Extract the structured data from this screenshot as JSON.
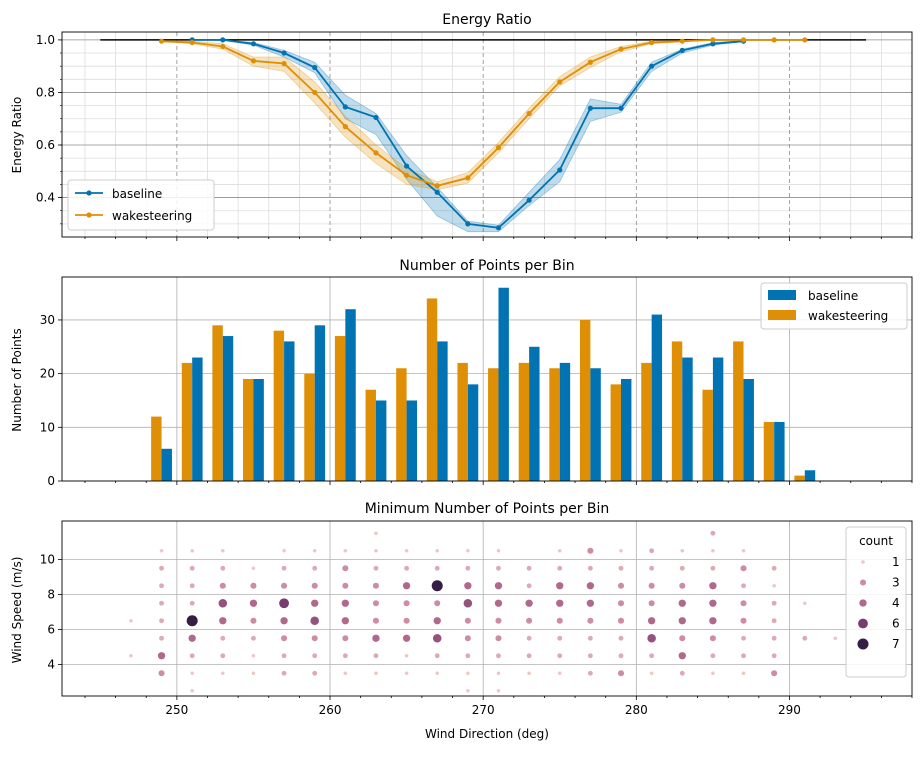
{
  "x_axis": {
    "label": "Wind Direction (deg)",
    "range": [
      242.5,
      298
    ],
    "ticks": [
      250,
      260,
      270,
      280,
      290
    ],
    "tick_labels": [
      "250",
      "260",
      "270",
      "280",
      "290"
    ]
  },
  "colors": {
    "baseline": "#0173b2",
    "wakesteering": "#de8f05",
    "reference_line": "#000000"
  },
  "chart_data": [
    {
      "id": "energy_ratio",
      "type": "line",
      "title": "Energy Ratio",
      "ylabel": "Energy Ratio",
      "ylim": [
        0.25,
        1.03
      ],
      "yticks": [
        0.4,
        0.6,
        0.8,
        1.0
      ],
      "ytick_labels": [
        "0.4",
        "0.6",
        "0.8",
        "1.0"
      ],
      "reference_line": {
        "x": [
          245,
          295
        ],
        "y": 1.0
      },
      "legend": {
        "position": "lower-left",
        "entries": [
          "baseline",
          "wakesteering"
        ]
      },
      "series": [
        {
          "name": "baseline",
          "x": [
            251,
            253,
            255,
            257,
            259,
            261,
            263,
            265,
            267,
            269,
            271,
            273,
            275,
            277,
            279,
            281,
            283,
            285,
            287
          ],
          "y": [
            1.0,
            1.0,
            0.985,
            0.95,
            0.895,
            0.745,
            0.705,
            0.52,
            0.42,
            0.3,
            0.285,
            0.39,
            0.505,
            0.74,
            0.74,
            0.9,
            0.96,
            0.985,
            0.995
          ],
          "lower": [
            0.998,
            0.998,
            0.98,
            0.935,
            0.875,
            0.7,
            0.64,
            0.47,
            0.33,
            0.27,
            0.27,
            0.37,
            0.46,
            0.69,
            0.725,
            0.88,
            0.95,
            0.98,
            0.993
          ],
          "upper": [
            1.0,
            1.0,
            0.99,
            0.96,
            0.915,
            0.79,
            0.72,
            0.56,
            0.44,
            0.31,
            0.295,
            0.42,
            0.545,
            0.775,
            0.755,
            0.915,
            0.965,
            0.99,
            0.998
          ]
        },
        {
          "name": "wakesteering",
          "x": [
            249,
            251,
            253,
            255,
            257,
            259,
            261,
            263,
            265,
            267,
            269,
            271,
            273,
            275,
            277,
            279,
            281,
            283,
            285,
            287,
            289,
            291
          ],
          "y": [
            0.995,
            0.99,
            0.975,
            0.92,
            0.91,
            0.8,
            0.67,
            0.57,
            0.485,
            0.445,
            0.475,
            0.59,
            0.72,
            0.84,
            0.915,
            0.965,
            0.99,
            0.995,
            1.0,
            1.0,
            1.0,
            1.0
          ],
          "lower": [
            0.993,
            0.985,
            0.965,
            0.9,
            0.88,
            0.76,
            0.63,
            0.53,
            0.45,
            0.43,
            0.455,
            0.57,
            0.7,
            0.825,
            0.895,
            0.955,
            0.985,
            0.993,
            0.998,
            0.998,
            0.998,
            0.998
          ],
          "upper": [
            0.998,
            0.995,
            0.985,
            0.935,
            0.935,
            0.84,
            0.71,
            0.6,
            0.51,
            0.46,
            0.495,
            0.61,
            0.74,
            0.86,
            0.935,
            0.975,
            0.995,
            0.998,
            1.0,
            1.0,
            1.0,
            1.0
          ]
        }
      ]
    },
    {
      "id": "points_per_bin",
      "type": "bar",
      "title": "Number of Points per Bin",
      "ylabel": "Number of Points",
      "ylim": [
        0,
        38
      ],
      "yticks": [
        0,
        10,
        20,
        30
      ],
      "ytick_labels": [
        "0",
        "10",
        "20",
        "30"
      ],
      "legend": {
        "position": "top-right",
        "entries": [
          "baseline",
          "wakesteering"
        ]
      },
      "categories": [
        249,
        251,
        253,
        255,
        257,
        259,
        261,
        263,
        265,
        267,
        269,
        271,
        273,
        275,
        277,
        279,
        281,
        283,
        285,
        287,
        289,
        291
      ],
      "series": [
        {
          "name": "baseline",
          "values": [
            6,
            23,
            27,
            19,
            26,
            29,
            32,
            15,
            15,
            26,
            18,
            36,
            25,
            22,
            21,
            19,
            31,
            23,
            23,
            19,
            11,
            2
          ]
        },
        {
          "name": "wakesteering",
          "values": [
            12,
            22,
            29,
            19,
            28,
            20,
            27,
            17,
            21,
            34,
            22,
            21,
            22,
            21,
            30,
            18,
            22,
            26,
            17,
            26,
            11,
            1
          ]
        }
      ]
    },
    {
      "id": "min_points_per_bin",
      "type": "scatter",
      "title": "Minimum Number of Points per Bin",
      "ylabel": "Wind Speed (m/s)",
      "xlabel": "Wind Direction (deg)",
      "ylim": [
        2.2,
        12.2
      ],
      "yticks": [
        4,
        6,
        8,
        10
      ],
      "ytick_labels": [
        "4",
        "6",
        "8",
        "10"
      ],
      "legend": {
        "title": "count",
        "position": "top-right",
        "entries": [
          {
            "label": "1",
            "value": 1
          },
          {
            "label": "3",
            "value": 3
          },
          {
            "label": "4",
            "value": 4
          },
          {
            "label": "6",
            "value": 6
          },
          {
            "label": "7",
            "value": 7
          }
        ]
      },
      "points": [
        [
          247,
          4.5,
          1
        ],
        [
          247,
          6.5,
          1
        ],
        [
          249,
          3.5,
          3
        ],
        [
          249,
          4.5,
          4
        ],
        [
          249,
          5.5,
          2
        ],
        [
          249,
          6.5,
          2
        ],
        [
          249,
          7.5,
          2
        ],
        [
          249,
          8.5,
          2
        ],
        [
          249,
          9.5,
          2
        ],
        [
          249,
          10.5,
          1
        ],
        [
          251,
          2.5,
          1
        ],
        [
          251,
          3.5,
          1
        ],
        [
          251,
          4.5,
          2
        ],
        [
          251,
          5.5,
          4
        ],
        [
          251,
          6.5,
          7
        ],
        [
          251,
          7.5,
          2
        ],
        [
          251,
          8.5,
          2
        ],
        [
          251,
          9.5,
          2
        ],
        [
          251,
          10.5,
          1
        ],
        [
          253,
          3.5,
          1
        ],
        [
          253,
          4.5,
          2
        ],
        [
          253,
          5.5,
          2
        ],
        [
          253,
          6.5,
          4
        ],
        [
          253,
          7.5,
          5
        ],
        [
          253,
          8.5,
          3
        ],
        [
          253,
          9.5,
          2
        ],
        [
          253,
          10.5,
          1
        ],
        [
          255,
          3.5,
          1
        ],
        [
          255,
          4.5,
          1
        ],
        [
          255,
          5.5,
          2
        ],
        [
          255,
          6.5,
          3
        ],
        [
          255,
          7.5,
          4
        ],
        [
          255,
          8.5,
          3
        ],
        [
          255,
          9.5,
          1
        ],
        [
          257,
          3.5,
          2
        ],
        [
          257,
          4.5,
          2
        ],
        [
          257,
          5.5,
          3
        ],
        [
          257,
          6.5,
          4
        ],
        [
          257,
          7.5,
          6
        ],
        [
          257,
          8.5,
          3
        ],
        [
          257,
          9.5,
          2
        ],
        [
          257,
          10.5,
          1
        ],
        [
          259,
          3.5,
          2
        ],
        [
          259,
          4.5,
          2
        ],
        [
          259,
          5.5,
          3
        ],
        [
          259,
          6.5,
          5
        ],
        [
          259,
          7.5,
          4
        ],
        [
          259,
          8.5,
          3
        ],
        [
          259,
          9.5,
          2
        ],
        [
          259,
          10.5,
          1
        ],
        [
          261,
          3.5,
          1
        ],
        [
          261,
          4.5,
          2
        ],
        [
          261,
          5.5,
          3
        ],
        [
          261,
          6.5,
          4
        ],
        [
          261,
          7.5,
          4
        ],
        [
          261,
          8.5,
          3
        ],
        [
          261,
          9.5,
          3
        ],
        [
          261,
          10.5,
          1
        ],
        [
          263,
          3.5,
          1
        ],
        [
          263,
          4.5,
          2
        ],
        [
          263,
          5.5,
          4
        ],
        [
          263,
          6.5,
          3
        ],
        [
          263,
          7.5,
          3
        ],
        [
          263,
          8.5,
          3
        ],
        [
          263,
          9.5,
          2
        ],
        [
          263,
          10.5,
          1
        ],
        [
          263,
          11.5,
          1
        ],
        [
          265,
          3.5,
          1
        ],
        [
          265,
          4.5,
          1
        ],
        [
          265,
          5.5,
          4
        ],
        [
          265,
          6.5,
          3
        ],
        [
          265,
          7.5,
          3
        ],
        [
          265,
          8.5,
          4
        ],
        [
          265,
          9.5,
          2
        ],
        [
          265,
          10.5,
          1
        ],
        [
          267,
          3.5,
          1
        ],
        [
          267,
          4.5,
          2
        ],
        [
          267,
          5.5,
          5
        ],
        [
          267,
          6.5,
          4
        ],
        [
          267,
          7.5,
          3
        ],
        [
          267,
          8.5,
          7
        ],
        [
          267,
          9.5,
          2
        ],
        [
          267,
          10.5,
          1
        ],
        [
          269,
          2.5,
          1
        ],
        [
          269,
          3.5,
          1
        ],
        [
          269,
          4.5,
          2
        ],
        [
          269,
          5.5,
          3
        ],
        [
          269,
          6.5,
          3
        ],
        [
          269,
          7.5,
          5
        ],
        [
          269,
          8.5,
          4
        ],
        [
          269,
          9.5,
          2
        ],
        [
          269,
          10.5,
          1
        ],
        [
          271,
          2.5,
          1
        ],
        [
          271,
          3.5,
          1
        ],
        [
          271,
          4.5,
          2
        ],
        [
          271,
          5.5,
          3
        ],
        [
          271,
          6.5,
          3
        ],
        [
          271,
          7.5,
          4
        ],
        [
          271,
          8.5,
          4
        ],
        [
          271,
          9.5,
          2
        ],
        [
          271,
          10.5,
          1
        ],
        [
          273,
          3.5,
          1
        ],
        [
          273,
          4.5,
          2
        ],
        [
          273,
          5.5,
          2
        ],
        [
          273,
          6.5,
          3
        ],
        [
          273,
          7.5,
          4
        ],
        [
          273,
          8.5,
          2
        ],
        [
          273,
          9.5,
          2
        ],
        [
          275,
          3.5,
          1
        ],
        [
          275,
          4.5,
          2
        ],
        [
          275,
          5.5,
          2
        ],
        [
          275,
          6.5,
          3
        ],
        [
          275,
          7.5,
          4
        ],
        [
          275,
          8.5,
          4
        ],
        [
          275,
          9.5,
          2
        ],
        [
          275,
          10.5,
          1
        ],
        [
          277,
          3.5,
          2
        ],
        [
          277,
          4.5,
          2
        ],
        [
          277,
          5.5,
          2
        ],
        [
          277,
          6.5,
          3
        ],
        [
          277,
          7.5,
          4
        ],
        [
          277,
          8.5,
          4
        ],
        [
          277,
          9.5,
          2
        ],
        [
          277,
          10.5,
          3
        ],
        [
          279,
          3.5,
          3
        ],
        [
          279,
          4.5,
          2
        ],
        [
          279,
          5.5,
          2
        ],
        [
          279,
          6.5,
          3
        ],
        [
          279,
          7.5,
          3
        ],
        [
          279,
          8.5,
          3
        ],
        [
          279,
          9.5,
          2
        ],
        [
          279,
          10.5,
          1
        ],
        [
          281,
          3.5,
          1
        ],
        [
          281,
          4.5,
          2
        ],
        [
          281,
          5.5,
          5
        ],
        [
          281,
          6.5,
          4
        ],
        [
          281,
          7.5,
          3
        ],
        [
          281,
          8.5,
          3
        ],
        [
          281,
          9.5,
          2
        ],
        [
          281,
          10.5,
          2
        ],
        [
          283,
          3.5,
          2
        ],
        [
          283,
          4.5,
          4
        ],
        [
          283,
          5.5,
          3
        ],
        [
          283,
          6.5,
          4
        ],
        [
          283,
          7.5,
          4
        ],
        [
          283,
          8.5,
          3
        ],
        [
          283,
          9.5,
          2
        ],
        [
          283,
          10.5,
          1
        ],
        [
          285,
          3.5,
          1
        ],
        [
          285,
          4.5,
          2
        ],
        [
          285,
          5.5,
          3
        ],
        [
          285,
          6.5,
          4
        ],
        [
          285,
          7.5,
          4
        ],
        [
          285,
          8.5,
          4
        ],
        [
          285,
          9.5,
          2
        ],
        [
          285,
          10.5,
          1
        ],
        [
          285,
          11.5,
          2
        ],
        [
          287,
          3.5,
          1
        ],
        [
          287,
          4.5,
          2
        ],
        [
          287,
          5.5,
          2
        ],
        [
          287,
          6.5,
          3
        ],
        [
          287,
          7.5,
          3
        ],
        [
          287,
          8.5,
          2
        ],
        [
          287,
          9.5,
          3
        ],
        [
          287,
          10.5,
          1
        ],
        [
          289,
          3.5,
          3
        ],
        [
          289,
          4.5,
          2
        ],
        [
          289,
          5.5,
          2
        ],
        [
          289,
          6.5,
          2
        ],
        [
          289,
          7.5,
          2
        ],
        [
          289,
          8.5,
          1
        ],
        [
          289,
          9.5,
          2
        ],
        [
          291,
          5.5,
          2
        ],
        [
          291,
          7.5,
          1
        ],
        [
          293,
          5.5,
          1
        ]
      ]
    }
  ]
}
